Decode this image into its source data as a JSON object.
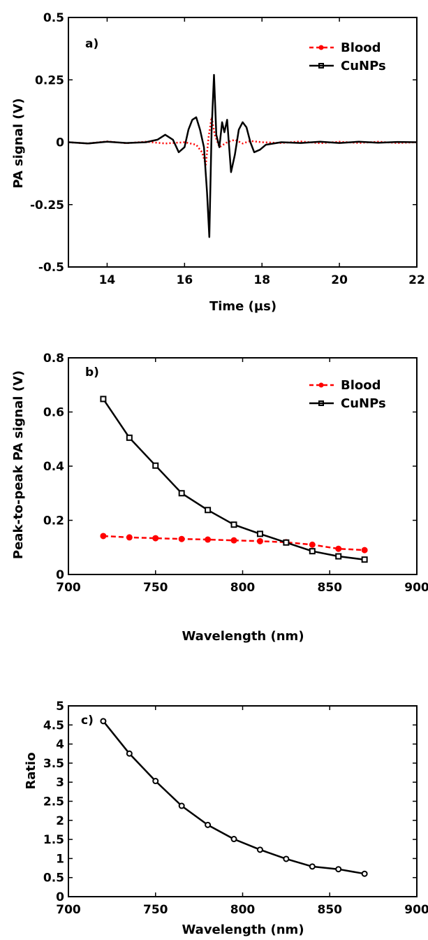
{
  "chart_data": [
    {
      "type": "line",
      "panel_label": "a)",
      "xlabel": "Time (µs)",
      "ylabel": "PA signal (V)",
      "xlim": [
        13,
        22
      ],
      "ylim": [
        -0.5,
        0.5
      ],
      "xticks": [
        14,
        16,
        18,
        20,
        22
      ],
      "xtick_labels": [
        "14",
        "16",
        "18",
        "20",
        "22"
      ],
      "yticks": [
        -0.5,
        -0.25,
        0,
        0.25,
        0.5
      ],
      "ytick_labels": [
        "-0.5",
        "-0.25",
        "0",
        "0.25",
        "0.5"
      ],
      "grid": false,
      "legend_position": "top-right",
      "series": [
        {
          "name": "Blood",
          "color": "#ff0000",
          "style": "dotted",
          "marker": "none",
          "x": [
            13.0,
            13.5,
            14.0,
            14.5,
            15.0,
            15.5,
            16.0,
            16.3,
            16.45,
            16.55,
            16.62,
            16.7,
            16.78,
            16.9,
            17.1,
            17.3,
            17.5,
            17.7,
            18.0,
            18.5,
            19.0,
            19.5,
            20.0,
            20.5,
            21.0,
            21.5,
            22.0
          ],
          "y": [
            0.0,
            -0.005,
            0.003,
            -0.004,
            0.002,
            -0.005,
            0.0,
            -0.01,
            -0.04,
            -0.09,
            0.02,
            0.1,
            0.03,
            -0.02,
            0.0,
            0.01,
            -0.005,
            0.005,
            0.0,
            -0.003,
            0.003,
            -0.004,
            0.002,
            -0.003,
            0.002,
            -0.003,
            0.0
          ]
        },
        {
          "name": "CuNPs",
          "color": "#000000",
          "style": "solid",
          "marker": "none",
          "x": [
            13.0,
            13.5,
            14.0,
            14.5,
            15.0,
            15.3,
            15.5,
            15.7,
            15.85,
            16.0,
            16.1,
            16.2,
            16.3,
            16.4,
            16.5,
            16.58,
            16.64,
            16.7,
            16.76,
            16.82,
            16.9,
            16.97,
            17.03,
            17.1,
            17.2,
            17.3,
            17.4,
            17.5,
            17.6,
            17.7,
            17.8,
            17.95,
            18.1,
            18.5,
            19.0,
            19.5,
            20.0,
            20.5,
            21.0,
            21.5,
            22.0
          ],
          "y": [
            0.0,
            -0.005,
            0.002,
            -0.003,
            0.0,
            0.01,
            0.03,
            0.01,
            -0.04,
            -0.02,
            0.05,
            0.09,
            0.1,
            0.05,
            -0.02,
            -0.2,
            -0.38,
            0.05,
            0.27,
            0.03,
            -0.02,
            0.08,
            0.04,
            0.09,
            -0.12,
            -0.05,
            0.05,
            0.08,
            0.06,
            0.0,
            -0.04,
            -0.03,
            -0.01,
            0.0,
            -0.003,
            0.002,
            -0.003,
            0.002,
            -0.002,
            0.001,
            0.0
          ]
        }
      ]
    },
    {
      "type": "line",
      "panel_label": "b)",
      "xlabel": "Wavelength (nm)",
      "ylabel": "Peak-to-peak PA signal (V)",
      "xlim": [
        700,
        900
      ],
      "ylim": [
        0,
        0.8
      ],
      "xticks": [
        700,
        750,
        800,
        850,
        900
      ],
      "xtick_labels": [
        "700",
        "750",
        "800",
        "850",
        "900"
      ],
      "yticks": [
        0,
        0.2,
        0.4,
        0.6,
        0.8
      ],
      "ytick_labels": [
        "0",
        "0.2",
        "0.4",
        "0.6",
        "0.8"
      ],
      "grid": false,
      "legend_position": "top-right",
      "series": [
        {
          "name": "Blood",
          "color": "#ff0000",
          "style": "dashed",
          "marker": "circle",
          "x": [
            720,
            735,
            750,
            765,
            780,
            795,
            810,
            825,
            840,
            855,
            870
          ],
          "y": [
            0.142,
            0.137,
            0.134,
            0.131,
            0.129,
            0.126,
            0.123,
            0.119,
            0.11,
            0.095,
            0.09
          ]
        },
        {
          "name": "CuNPs",
          "color": "#000000",
          "style": "solid",
          "marker": "square",
          "x": [
            720,
            735,
            750,
            765,
            780,
            795,
            810,
            825,
            840,
            855,
            870
          ],
          "y": [
            0.648,
            0.505,
            0.402,
            0.3,
            0.238,
            0.184,
            0.15,
            0.118,
            0.086,
            0.067,
            0.055
          ]
        }
      ]
    },
    {
      "type": "line",
      "panel_label": "c)",
      "xlabel": "Wavelength (nm)",
      "ylabel": "Ratio",
      "xlim": [
        700,
        900
      ],
      "ylim": [
        0,
        5
      ],
      "xticks": [
        700,
        750,
        800,
        850,
        900
      ],
      "xtick_labels": [
        "700",
        "750",
        "800",
        "850",
        "900"
      ],
      "yticks": [
        0,
        0.5,
        1,
        1.5,
        2,
        2.5,
        3,
        3.5,
        4,
        4.5,
        5
      ],
      "ytick_labels": [
        "0",
        "0.5",
        "1",
        "1.5",
        "2",
        "2.5",
        "3",
        "3.5",
        "4",
        "4.5",
        "5"
      ],
      "grid": false,
      "legend_position": "none",
      "series": [
        {
          "color": "#000000",
          "style": "solid",
          "marker": "circle",
          "x": [
            720,
            735,
            750,
            765,
            780,
            795,
            810,
            825,
            840,
            855,
            870
          ],
          "y": [
            4.6,
            3.75,
            3.03,
            2.38,
            1.88,
            1.51,
            1.23,
            0.99,
            0.79,
            0.72,
            0.6
          ]
        }
      ]
    }
  ]
}
